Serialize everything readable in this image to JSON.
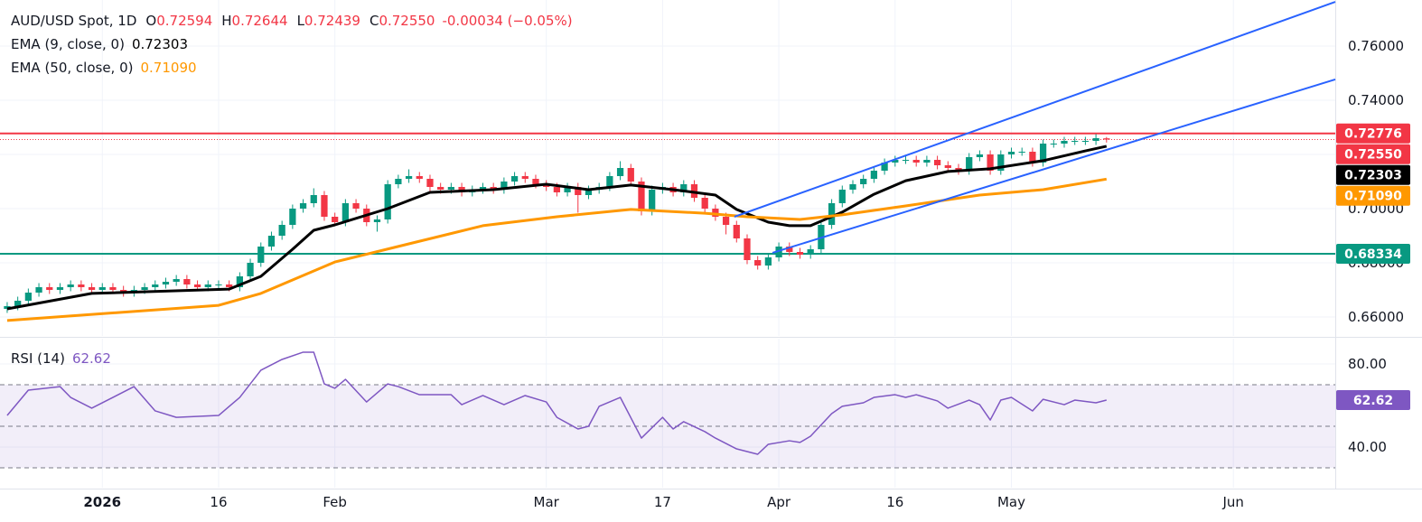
{
  "chart_data": [
    {
      "type": "candlestick",
      "title": "AUD/USD Spot, 1D",
      "ohlc_labels": [
        {
          "k": "O",
          "v": "0.72594"
        },
        {
          "k": "H",
          "v": "0.72644"
        },
        {
          "k": "L",
          "v": "0.72439"
        },
        {
          "k": "C",
          "v": "0.72550"
        }
      ],
      "change": "-0.00034 (−0.05%)",
      "up_color": "#089981",
      "down_color": "#f23645",
      "xlim": [
        -0.68,
        125.64
      ],
      "xticks": [
        {
          "value": 9,
          "label": "2026"
        },
        {
          "value": 20,
          "label": "16"
        },
        {
          "value": 31,
          "label": "Feb"
        },
        {
          "value": 51,
          "label": "Mar"
        },
        {
          "value": 62,
          "label": "17"
        },
        {
          "value": 73,
          "label": "Apr"
        },
        {
          "value": 84,
          "label": "16"
        },
        {
          "value": 95,
          "label": "May"
        },
        {
          "value": 116,
          "label": "Jun"
        }
      ],
      "ylim": [
        0.653,
        0.777
      ],
      "yticks": [
        {
          "value": 0.66,
          "label": "0.66000"
        },
        {
          "value": 0.68,
          "label": "0.68000"
        },
        {
          "value": 0.7,
          "label": "0.70000"
        },
        {
          "value": 0.72,
          "label": "0.72000"
        },
        {
          "value": 0.74,
          "label": "0.74000"
        },
        {
          "value": 0.76,
          "label": "0.76000"
        }
      ],
      "grid": true,
      "x": [
        0,
        1,
        2,
        3,
        4,
        5,
        6,
        7,
        8,
        9,
        10,
        11,
        12,
        13,
        14,
        15,
        16,
        17,
        18,
        19,
        20,
        21,
        22,
        23,
        24,
        25,
        26,
        27,
        28,
        29,
        30,
        31,
        32,
        33,
        34,
        35,
        36,
        37,
        38,
        39,
        40,
        41,
        42,
        43,
        44,
        45,
        46,
        47,
        48,
        49,
        50,
        51,
        52,
        53,
        54,
        55,
        56,
        57,
        58,
        59,
        60,
        61,
        62,
        63,
        64,
        65,
        66,
        67,
        68,
        69,
        70,
        71,
        72,
        73,
        74,
        75,
        76,
        77,
        78,
        79,
        80,
        81,
        82,
        83,
        84,
        85,
        86,
        87,
        88,
        89,
        90,
        91,
        92,
        93,
        94,
        95,
        96,
        97,
        98,
        99,
        100,
        101,
        102,
        103,
        104
      ],
      "open": [
        0.663,
        0.664,
        0.666,
        0.669,
        0.671,
        0.67,
        0.671,
        0.672,
        0.671,
        0.67,
        0.671,
        0.67,
        0.669,
        0.67,
        0.671,
        0.672,
        0.673,
        0.674,
        0.672,
        0.671,
        0.672,
        0.672,
        0.671,
        0.675,
        0.68,
        0.686,
        0.69,
        0.694,
        0.7,
        0.702,
        0.705,
        0.697,
        0.695,
        0.702,
        0.7,
        0.695,
        0.696,
        0.709,
        0.711,
        0.712,
        0.711,
        0.708,
        0.707,
        0.708,
        0.706,
        0.707,
        0.708,
        0.707,
        0.71,
        0.712,
        0.711,
        0.709,
        0.708,
        0.706,
        0.708,
        0.705,
        0.707,
        0.708,
        0.712,
        0.715,
        0.71,
        0.699,
        0.707,
        0.708,
        0.706,
        0.709,
        0.704,
        0.7,
        0.697,
        0.694,
        0.689,
        0.681,
        0.679,
        0.682,
        0.686,
        0.684,
        0.683,
        0.685,
        0.694,
        0.702,
        0.707,
        0.709,
        0.711,
        0.714,
        0.717,
        0.718,
        0.718,
        0.717,
        0.718,
        0.716,
        0.715,
        0.714,
        0.719,
        0.72,
        0.714,
        0.72,
        0.721,
        0.721,
        0.717,
        0.724,
        0.724,
        0.725,
        0.725,
        0.725,
        0.72594
      ],
      "high": [
        0.6655,
        0.6675,
        0.6705,
        0.6725,
        0.6725,
        0.6725,
        0.6735,
        0.6735,
        0.6725,
        0.6725,
        0.6725,
        0.6715,
        0.6715,
        0.6725,
        0.6735,
        0.6745,
        0.6755,
        0.6755,
        0.6735,
        0.6735,
        0.6735,
        0.6735,
        0.6765,
        0.6815,
        0.6875,
        0.6915,
        0.6955,
        0.7015,
        0.7035,
        0.7075,
        0.7065,
        0.6985,
        0.7035,
        0.7035,
        0.7015,
        0.6975,
        0.7105,
        0.7125,
        0.7145,
        0.7135,
        0.7125,
        0.7095,
        0.7095,
        0.7095,
        0.7085,
        0.7095,
        0.7095,
        0.7115,
        0.7135,
        0.7135,
        0.7125,
        0.7105,
        0.7095,
        0.7095,
        0.7095,
        0.7085,
        0.7095,
        0.7135,
        0.7175,
        0.7165,
        0.7115,
        0.7085,
        0.7095,
        0.7095,
        0.7105,
        0.7105,
        0.7055,
        0.7015,
        0.6985,
        0.6955,
        0.6905,
        0.6825,
        0.6835,
        0.6875,
        0.6875,
        0.6855,
        0.6865,
        0.6955,
        0.7035,
        0.7085,
        0.7105,
        0.7125,
        0.7155,
        0.7185,
        0.7195,
        0.7195,
        0.7195,
        0.7195,
        0.7195,
        0.7175,
        0.7165,
        0.7205,
        0.7215,
        0.7215,
        0.7215,
        0.7225,
        0.7225,
        0.7225,
        0.7255,
        0.7255,
        0.7265,
        0.7265,
        0.7265,
        0.7275,
        0.72644
      ],
      "low": [
        0.6615,
        0.6625,
        0.6645,
        0.6675,
        0.6685,
        0.6685,
        0.6695,
        0.6695,
        0.6685,
        0.6685,
        0.6685,
        0.6675,
        0.6675,
        0.6685,
        0.6695,
        0.6705,
        0.6715,
        0.6705,
        0.6695,
        0.6695,
        0.6705,
        0.6695,
        0.6695,
        0.6735,
        0.6785,
        0.6845,
        0.6885,
        0.6925,
        0.6985,
        0.7005,
        0.6955,
        0.6935,
        0.6935,
        0.6985,
        0.6935,
        0.6915,
        0.6945,
        0.7075,
        0.7095,
        0.7095,
        0.7065,
        0.7055,
        0.7055,
        0.7045,
        0.7045,
        0.7055,
        0.7055,
        0.7055,
        0.7085,
        0.7095,
        0.7075,
        0.7065,
        0.7045,
        0.7045,
        0.6985,
        0.7035,
        0.7055,
        0.7065,
        0.7105,
        0.7085,
        0.6975,
        0.6975,
        0.7055,
        0.7045,
        0.7045,
        0.7025,
        0.6985,
        0.6955,
        0.6905,
        0.6875,
        0.6795,
        0.6775,
        0.6775,
        0.6805,
        0.6825,
        0.6815,
        0.6815,
        0.6835,
        0.6925,
        0.7005,
        0.7055,
        0.7075,
        0.7095,
        0.7125,
        0.7155,
        0.7165,
        0.7155,
        0.7155,
        0.7145,
        0.7135,
        0.7125,
        0.7125,
        0.7175,
        0.7125,
        0.7125,
        0.7185,
        0.7195,
        0.7155,
        0.7155,
        0.7225,
        0.7225,
        0.7235,
        0.7235,
        0.7235,
        0.72439
      ],
      "close": [
        0.664,
        0.666,
        0.669,
        0.671,
        0.67,
        0.671,
        0.672,
        0.671,
        0.67,
        0.671,
        0.67,
        0.669,
        0.67,
        0.671,
        0.672,
        0.673,
        0.674,
        0.672,
        0.671,
        0.672,
        0.672,
        0.671,
        0.675,
        0.68,
        0.686,
        0.69,
        0.694,
        0.7,
        0.702,
        0.705,
        0.697,
        0.695,
        0.702,
        0.7,
        0.695,
        0.696,
        0.709,
        0.711,
        0.712,
        0.711,
        0.708,
        0.707,
        0.708,
        0.706,
        0.707,
        0.708,
        0.707,
        0.71,
        0.712,
        0.711,
        0.709,
        0.708,
        0.706,
        0.708,
        0.705,
        0.707,
        0.708,
        0.712,
        0.715,
        0.71,
        0.699,
        0.707,
        0.708,
        0.706,
        0.709,
        0.704,
        0.7,
        0.697,
        0.694,
        0.689,
        0.681,
        0.679,
        0.682,
        0.686,
        0.684,
        0.683,
        0.685,
        0.694,
        0.702,
        0.707,
        0.709,
        0.711,
        0.714,
        0.717,
        0.718,
        0.718,
        0.717,
        0.718,
        0.716,
        0.715,
        0.714,
        0.719,
        0.72,
        0.714,
        0.72,
        0.721,
        0.721,
        0.717,
        0.724,
        0.724,
        0.725,
        0.725,
        0.725,
        0.726,
        0.7255
      ],
      "series": [
        {
          "name": "EMA (9, close, 0)",
          "color": "#000000",
          "last": "0.72303",
          "x": [
            0,
            8,
            21,
            24,
            27,
            29,
            31,
            36,
            40,
            46,
            51,
            55,
            59,
            63,
            67,
            69,
            72,
            74,
            76,
            79,
            82,
            85,
            89,
            93,
            98,
            102,
            104
          ],
          "values": [
            0.663,
            0.6687,
            0.6703,
            0.675,
            0.685,
            0.692,
            0.694,
            0.7,
            0.706,
            0.707,
            0.709,
            0.707,
            0.7087,
            0.707,
            0.705,
            0.6997,
            0.695,
            0.6937,
            0.6937,
            0.6987,
            0.7053,
            0.7103,
            0.7137,
            0.7147,
            0.7177,
            0.7213,
            0.72303
          ]
        },
        {
          "name": "EMA (50, close, 0)",
          "color": "#ff9800",
          "last": "0.71090",
          "x": [
            0,
            20,
            24,
            31,
            38,
            45,
            52,
            59,
            66,
            70,
            75,
            79,
            85,
            92,
            98,
            104
          ],
          "values": [
            0.6587,
            0.6643,
            0.6687,
            0.6803,
            0.687,
            0.6937,
            0.697,
            0.6997,
            0.6983,
            0.697,
            0.696,
            0.6977,
            0.701,
            0.705,
            0.707,
            0.7109
          ]
        }
      ],
      "hlines": [
        {
          "value": 0.72776,
          "label": "0.72776",
          "color": "#f23645",
          "dashed": false
        },
        {
          "value": 0.7255,
          "label": "0.72550",
          "color": "#f23645",
          "dashed": true
        },
        {
          "value": 0.68334,
          "label": "0.68334",
          "color": "#089981",
          "dashed": false
        }
      ],
      "trendlines": [
        {
          "color": "#2962ff",
          "x": [
            68.8,
            125.64
          ],
          "values": [
            0.697,
            0.7763
          ]
        },
        {
          "color": "#2962ff",
          "x": [
            72.4,
            125.64
          ],
          "values": [
            0.6837,
            0.7477
          ]
        }
      ]
    },
    {
      "type": "line",
      "xlim": [
        -0.68,
        125.64
      ],
      "ylim": [
        20.4,
        92.2
      ],
      "yticks": [
        {
          "value": 80,
          "label": "80.00"
        },
        {
          "value": 40,
          "label": "40.00"
        }
      ],
      "levels": [
        70,
        50,
        30
      ],
      "band_color": "#7e57c2",
      "series": [
        {
          "name": "RSI (14)",
          "color": "#7e57c2",
          "last": "62.62",
          "x": [
            0,
            2,
            5,
            6,
            8,
            12,
            14,
            16,
            20,
            22,
            24,
            26,
            28,
            29,
            30,
            31,
            32,
            34,
            36,
            37,
            39,
            42,
            43,
            45,
            47,
            49,
            51,
            52,
            54,
            55,
            56,
            58,
            60,
            62,
            63,
            64,
            66,
            67,
            69,
            71,
            72,
            74,
            75,
            76,
            78,
            79,
            81,
            82,
            84,
            85,
            86,
            88,
            89,
            91,
            92,
            93,
            94,
            95,
            97,
            98,
            100,
            101,
            103,
            104
          ],
          "values": [
            55.2,
            67.4,
            69.1,
            63.9,
            58.7,
            69.1,
            57.4,
            54.3,
            55.2,
            63.9,
            77.0,
            82.2,
            85.7,
            85.7,
            70.4,
            68.3,
            72.6,
            61.7,
            70.4,
            69.1,
            65.2,
            65.2,
            60.4,
            64.8,
            60.4,
            64.8,
            61.7,
            54.3,
            48.7,
            50.0,
            59.6,
            63.9,
            44.3,
            54.3,
            48.7,
            52.2,
            47.4,
            44.3,
            39.1,
            36.5,
            41.3,
            43.0,
            42.2,
            45.2,
            56.1,
            59.6,
            61.3,
            63.9,
            65.2,
            63.9,
            65.2,
            62.2,
            58.7,
            62.6,
            60.4,
            53.0,
            62.6,
            63.9,
            57.4,
            63.0,
            60.4,
            62.6,
            61.3,
            62.62
          ]
        }
      ]
    }
  ]
}
